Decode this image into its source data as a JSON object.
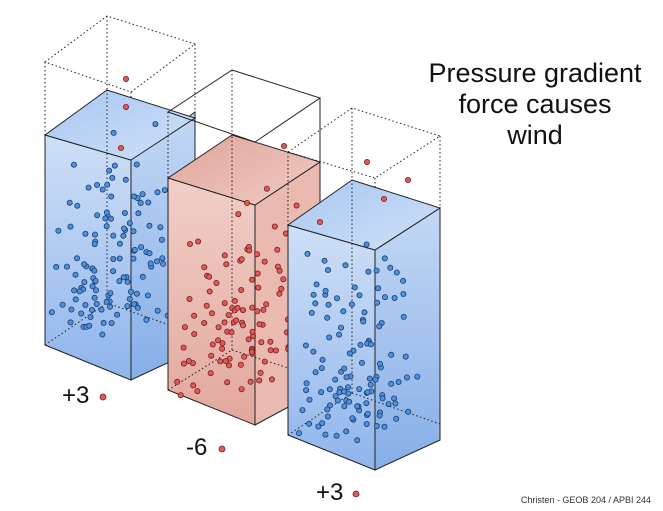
{
  "title_lines": [
    "Pressure gradient",
    "force causes",
    "wind"
  ],
  "columns": [
    {
      "name": "left",
      "label": "+3",
      "type": "high"
    },
    {
      "name": "middle",
      "label": "-6",
      "type": "low"
    },
    {
      "name": "right",
      "label": "+3",
      "type": "high"
    }
  ],
  "credit": "Christen - GEOB 204 / APBI 244",
  "colors": {
    "blue_particle": "#4f8fdc",
    "red_particle": "#e05a5a",
    "blue_column_top": "#b9d2f3",
    "red_column_top": "#e9b5ac",
    "outline": "#222222"
  }
}
